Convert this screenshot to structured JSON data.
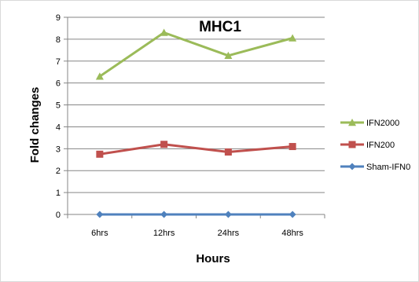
{
  "chart_data": {
    "type": "line",
    "title": "MHC1",
    "xlabel": "Hours",
    "ylabel": "Fold changes",
    "categories": [
      "6hrs",
      "12hrs",
      "24hrs",
      "48hrs"
    ],
    "ylim": [
      0,
      9
    ],
    "yticks": [
      0,
      1,
      2,
      3,
      4,
      5,
      6,
      7,
      8,
      9
    ],
    "grid": true,
    "legend_position": "right",
    "series": [
      {
        "name": "IFN2000",
        "values": [
          6.3,
          8.3,
          7.25,
          8.05
        ],
        "color": "#9bbb59",
        "marker": "triangle"
      },
      {
        "name": "IFN200",
        "values": [
          2.75,
          3.2,
          2.85,
          3.1
        ],
        "color": "#c0504d",
        "marker": "square"
      },
      {
        "name": "Sham-IFN0",
        "values": [
          0,
          0,
          0,
          0
        ],
        "color": "#4f81bd",
        "marker": "diamond"
      }
    ],
    "axis_color": "#868686",
    "grid_color": "#868686"
  }
}
